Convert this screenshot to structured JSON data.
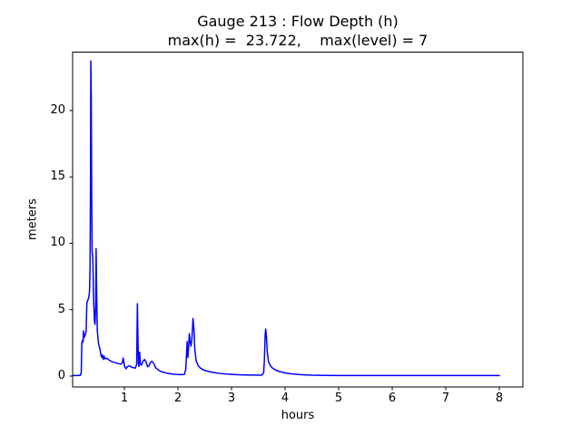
{
  "figure": {
    "title": "Gauge 213 : Flow Depth (h)",
    "subtitle": "max(h) =  23.722,    max(level) = 7"
  },
  "chart_data": {
    "type": "line",
    "title": "Gauge 213 : Flow Depth (h)",
    "subtitle": "max(h) =  23.722,    max(level) = 7",
    "xlabel": "hours",
    "ylabel": "meters",
    "xlim": [
      0.034,
      8.44
    ],
    "ylim": [
      -0.82,
      24.4
    ],
    "x_ticks": [
      "1",
      "2",
      "3",
      "4",
      "5",
      "6",
      "7",
      "8"
    ],
    "x_tick_values": [
      1,
      2,
      3,
      4,
      5,
      6,
      7,
      8
    ],
    "y_ticks": [
      "0",
      "5",
      "10",
      "15",
      "20"
    ],
    "y_tick_values": [
      0,
      5,
      10,
      15,
      20
    ],
    "grid": false,
    "legend": null,
    "line_color": "#0000ff",
    "line_width": 1.5,
    "background": "#ffffff",
    "annotations": {
      "max_h": 23.722,
      "max_level": 7
    },
    "series": [
      {
        "name": "flow-depth-h",
        "points": [
          [
            0.05,
            0.04
          ],
          [
            0.12,
            0.04
          ],
          [
            0.18,
            0.06
          ],
          [
            0.195,
            0.3
          ],
          [
            0.205,
            2.45
          ],
          [
            0.218,
            2.7
          ],
          [
            0.228,
            2.55
          ],
          [
            0.238,
            3.4
          ],
          [
            0.25,
            2.9
          ],
          [
            0.265,
            3.05
          ],
          [
            0.285,
            3.3
          ],
          [
            0.3,
            5.5
          ],
          [
            0.32,
            5.75
          ],
          [
            0.335,
            5.9
          ],
          [
            0.35,
            6.4
          ],
          [
            0.36,
            8.5
          ],
          [
            0.368,
            15.0
          ],
          [
            0.374,
            23.722
          ],
          [
            0.382,
            21.0
          ],
          [
            0.39,
            13.5
          ],
          [
            0.398,
            9.4
          ],
          [
            0.412,
            8.8
          ],
          [
            0.425,
            6.0
          ],
          [
            0.44,
            4.2
          ],
          [
            0.452,
            3.9
          ],
          [
            0.465,
            5.2
          ],
          [
            0.473,
            9.6
          ],
          [
            0.48,
            7.0
          ],
          [
            0.495,
            3.4
          ],
          [
            0.52,
            2.4
          ],
          [
            0.545,
            2.0
          ],
          [
            0.565,
            1.55
          ],
          [
            0.578,
            1.42
          ],
          [
            0.59,
            1.6
          ],
          [
            0.605,
            1.25
          ],
          [
            0.622,
            1.5
          ],
          [
            0.64,
            1.3
          ],
          [
            0.67,
            1.35
          ],
          [
            0.71,
            1.22
          ],
          [
            0.76,
            1.1
          ],
          [
            0.82,
            1.02
          ],
          [
            0.88,
            0.95
          ],
          [
            0.935,
            0.9
          ],
          [
            0.962,
            1.0
          ],
          [
            0.978,
            1.36
          ],
          [
            1.005,
            0.72
          ],
          [
            1.03,
            0.55
          ],
          [
            1.06,
            0.72
          ],
          [
            1.095,
            0.78
          ],
          [
            1.13,
            0.68
          ],
          [
            1.17,
            0.63
          ],
          [
            1.205,
            0.6
          ],
          [
            1.23,
            0.9
          ],
          [
            1.243,
            5.45
          ],
          [
            1.252,
            3.2
          ],
          [
            1.262,
            1.0
          ],
          [
            1.272,
            0.72
          ],
          [
            1.285,
            1.8
          ],
          [
            1.298,
            0.95
          ],
          [
            1.318,
            0.82
          ],
          [
            1.345,
            1.1
          ],
          [
            1.375,
            1.25
          ],
          [
            1.405,
            1.05
          ],
          [
            1.435,
            0.7
          ],
          [
            1.46,
            0.78
          ],
          [
            1.49,
            1.05
          ],
          [
            1.515,
            1.12
          ],
          [
            1.55,
            0.95
          ],
          [
            1.585,
            0.62
          ],
          [
            1.63,
            0.47
          ],
          [
            1.69,
            0.33
          ],
          [
            1.76,
            0.25
          ],
          [
            1.85,
            0.18
          ],
          [
            1.95,
            0.13
          ],
          [
            2.06,
            0.11
          ],
          [
            2.12,
            0.12
          ],
          [
            2.145,
            0.5
          ],
          [
            2.16,
            1.6
          ],
          [
            2.172,
            2.6
          ],
          [
            2.185,
            1.4
          ],
          [
            2.198,
            2.0
          ],
          [
            2.212,
            3.2
          ],
          [
            2.228,
            2.55
          ],
          [
            2.245,
            2.25
          ],
          [
            2.262,
            2.9
          ],
          [
            2.282,
            4.34
          ],
          [
            2.298,
            3.6
          ],
          [
            2.315,
            2.0
          ],
          [
            2.34,
            1.15
          ],
          [
            2.375,
            0.8
          ],
          [
            2.42,
            0.6
          ],
          [
            2.48,
            0.46
          ],
          [
            2.56,
            0.36
          ],
          [
            2.66,
            0.27
          ],
          [
            2.78,
            0.2
          ],
          [
            2.92,
            0.15
          ],
          [
            3.08,
            0.11
          ],
          [
            3.25,
            0.085
          ],
          [
            3.42,
            0.075
          ],
          [
            3.56,
            0.07
          ],
          [
            3.6,
            0.25
          ],
          [
            3.614,
            1.2
          ],
          [
            3.628,
            3.1
          ],
          [
            3.638,
            3.54
          ],
          [
            3.652,
            3.0
          ],
          [
            3.668,
            1.8
          ],
          [
            3.69,
            1.1
          ],
          [
            3.72,
            0.82
          ],
          [
            3.76,
            0.62
          ],
          [
            3.82,
            0.46
          ],
          [
            3.9,
            0.34
          ],
          [
            4.0,
            0.24
          ],
          [
            4.12,
            0.17
          ],
          [
            4.28,
            0.11
          ],
          [
            4.5,
            0.07
          ],
          [
            4.75,
            0.05
          ],
          [
            5.0,
            0.045
          ],
          [
            5.5,
            0.04
          ],
          [
            6.0,
            0.04
          ],
          [
            6.5,
            0.04
          ],
          [
            7.0,
            0.04
          ],
          [
            7.5,
            0.04
          ],
          [
            8.0,
            0.04
          ]
        ]
      }
    ]
  }
}
